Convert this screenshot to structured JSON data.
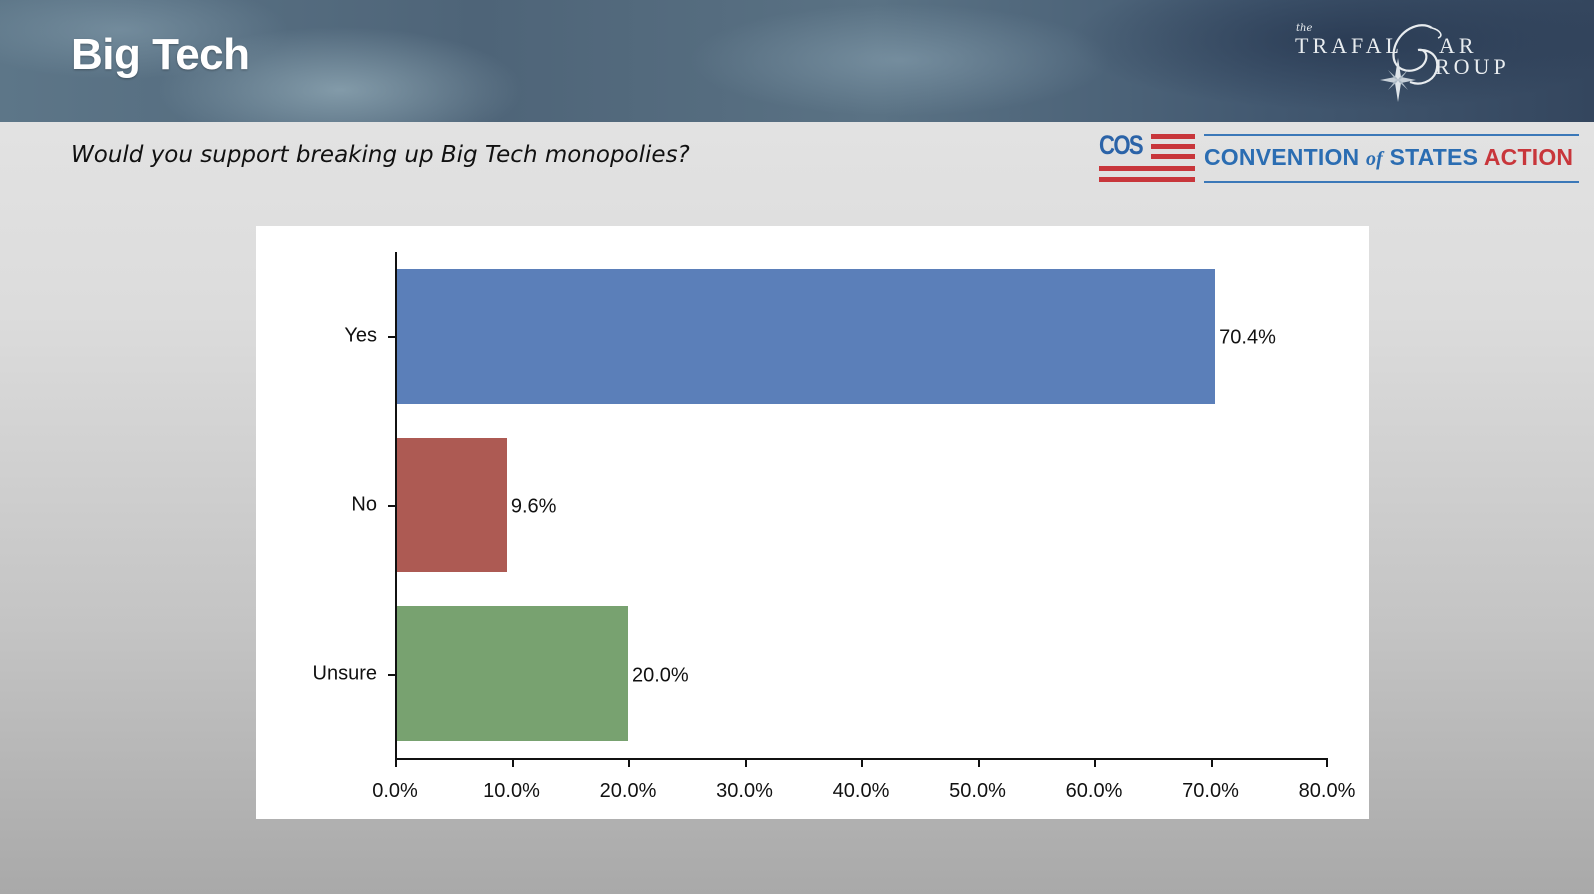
{
  "header": {
    "title": "Big Tech",
    "logo": {
      "small": "the",
      "line1": "TRAFAL",
      "swash_letter": "G",
      "line1_end": "AR",
      "line2": "ROUP"
    }
  },
  "question": "Would you support breaking up Big Tech monopolies?",
  "sponsor_logo": {
    "mark": "COS",
    "name_part1": "CONVENTION",
    "name_of": "of",
    "name_part2": "STATES",
    "name_part3": "ACTION",
    "colors": {
      "blue": "#2b6db2",
      "red": "#c8363b"
    }
  },
  "chart_data": {
    "type": "bar",
    "orientation": "horizontal",
    "title": "",
    "xlabel": "",
    "ylabel": "",
    "categories": [
      "Yes",
      "No",
      "Unsure"
    ],
    "values": [
      70.4,
      9.6,
      20.0
    ],
    "value_labels": [
      "70.4%",
      "9.6%",
      "20.0%"
    ],
    "colors": [
      "#5b7fb9",
      "#ad5a53",
      "#78a270"
    ],
    "xlim": [
      0,
      80
    ],
    "x_ticks": [
      0,
      10,
      20,
      30,
      40,
      50,
      60,
      70,
      80
    ],
    "x_tick_labels": [
      "0.0%",
      "10.0%",
      "20.0%",
      "30.0%",
      "40.0%",
      "50.0%",
      "60.0%",
      "70.0%",
      "80.0%"
    ],
    "grid": false,
    "legend": null
  }
}
